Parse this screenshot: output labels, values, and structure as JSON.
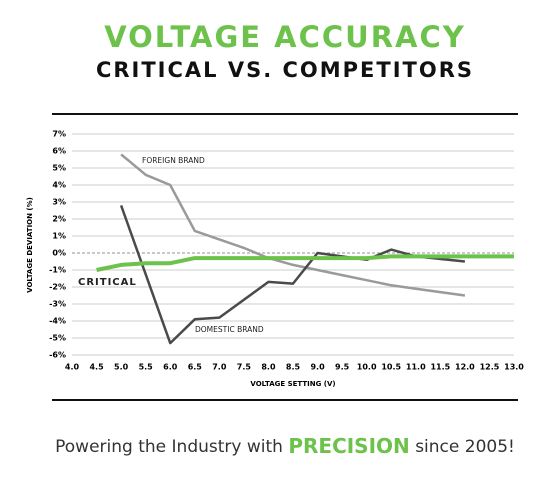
{
  "chart_data": {
    "type": "line",
    "title": "VOLTAGE ACCURACY",
    "subtitle": "CRITICAL VS. COMPETITORS",
    "x_label": "VOLTAGE SETTING (V)",
    "y_label": "VOLTAGE DEVIATION (%)",
    "xlim": [
      4,
      13
    ],
    "xticks": [
      {
        "value": 4,
        "label": "4.0"
      },
      4.5,
      {
        "value": 5,
        "label": "5.0"
      },
      5.5,
      {
        "value": 6,
        "label": "6.0"
      },
      6.5,
      {
        "value": 7,
        "label": "7.0"
      },
      7.5,
      {
        "value": 8,
        "label": "8.0"
      },
      8.5,
      {
        "value": 9,
        "label": "9.0"
      },
      9.5,
      {
        "value": 10,
        "label": "10.0"
      },
      10.5,
      {
        "value": 11,
        "label": "11.0"
      },
      11.5,
      {
        "value": 12,
        "label": "12.0"
      },
      12.5,
      {
        "value": 13,
        "label": "13.0"
      }
    ],
    "ylim": [
      -6,
      7
    ],
    "yticks": [
      {
        "value": -6,
        "label": "-6%"
      },
      {
        "value": -5,
        "label": "-5%"
      },
      {
        "value": -4,
        "label": "-4%"
      },
      {
        "value": -3,
        "label": "-3%"
      },
      {
        "value": -2,
        "label": "-2%"
      },
      {
        "value": -1,
        "label": "-1%"
      },
      {
        "value": 0,
        "label": "0%"
      },
      {
        "value": 1,
        "label": "1%"
      },
      {
        "value": 2,
        "label": "2%"
      },
      {
        "value": 3,
        "label": "3%"
      },
      {
        "value": 4,
        "label": "4%"
      },
      {
        "value": 5,
        "label": "5%"
      },
      {
        "value": 6,
        "label": "6%"
      },
      {
        "value": 7,
        "label": "7%"
      }
    ],
    "grid": true,
    "series": [
      {
        "name": "FOREIGN BRAND",
        "color": "#9a9a9a",
        "x": [
          5,
          5.5,
          6,
          6.5,
          7,
          7.5,
          8,
          8.5,
          9,
          9.5,
          10,
          10.5,
          11,
          11.5,
          12
        ],
        "values": [
          5.8,
          4.6,
          4.0,
          1.3,
          0.8,
          0.3,
          -0.3,
          -0.7,
          -1.0,
          -1.3,
          -1.6,
          -1.9,
          -2.1,
          -2.3,
          -2.5
        ]
      },
      {
        "name": "DOMESTIC BRAND",
        "color": "#4a4a4a",
        "x": [
          5,
          6,
          6.5,
          7,
          8,
          8.5,
          9,
          10,
          10.5,
          11,
          12
        ],
        "values": [
          2.8,
          -5.3,
          -3.9,
          -3.8,
          -1.7,
          -1.8,
          0.0,
          -0.4,
          0.2,
          -0.2,
          -0.5
        ]
      },
      {
        "name": "CRITICAL",
        "color": "#6cc24a",
        "x": [
          4.5,
          5,
          5.5,
          6,
          6.5,
          7,
          7.5,
          8,
          8.5,
          9,
          9.5,
          10,
          10.5,
          11,
          11.5,
          12,
          12.5,
          13
        ],
        "values": [
          -1.0,
          -0.7,
          -0.6,
          -0.6,
          -0.3,
          -0.3,
          -0.3,
          -0.3,
          -0.3,
          -0.3,
          -0.3,
          -0.3,
          -0.2,
          -0.2,
          -0.2,
          -0.2,
          -0.2,
          -0.2
        ]
      }
    ]
  },
  "footer": {
    "before": "Powering the Industry with",
    "highlight": "PRECISION",
    "after": "since 2005!"
  }
}
